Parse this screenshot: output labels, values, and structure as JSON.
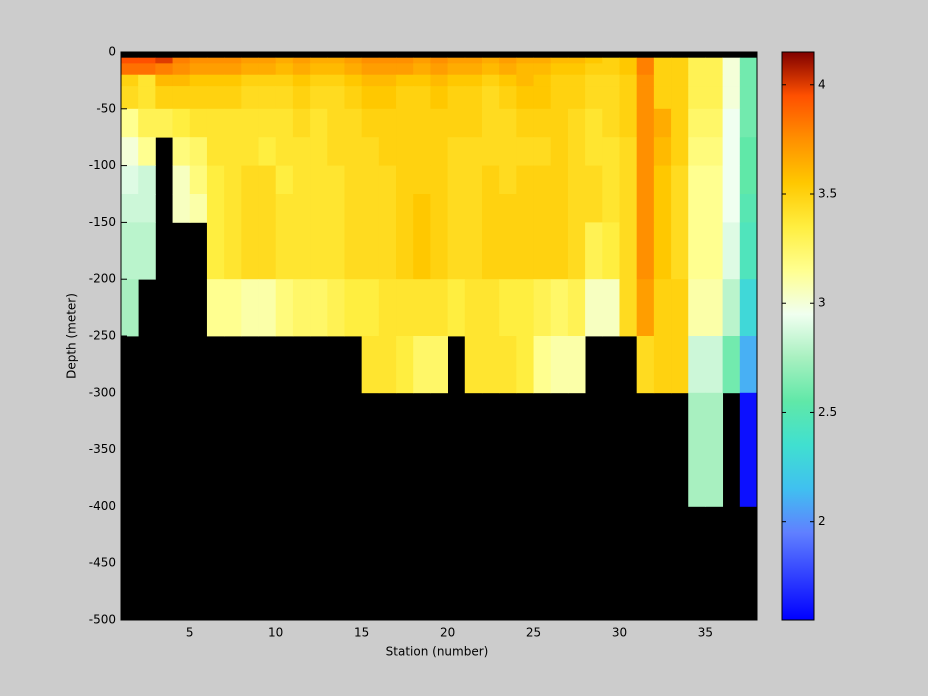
{
  "chart_data": {
    "type": "heatmap",
    "xlabel": "Station (number)",
    "ylabel": "Depth (meter)",
    "x": [
      1,
      2,
      3,
      4,
      5,
      6,
      7,
      8,
      9,
      10,
      11,
      12,
      13,
      14,
      15,
      16,
      17,
      18,
      19,
      20,
      21,
      22,
      23,
      24,
      25,
      26,
      27,
      28,
      29,
      30,
      31,
      32,
      33,
      34,
      35,
      36,
      37,
      38
    ],
    "y": [
      0,
      -5,
      -10,
      -20,
      -30,
      -50,
      -75,
      -100,
      -125,
      -150,
      -200,
      -250,
      -300,
      -400,
      -500
    ],
    "values": [
      [
        null,
        null,
        null,
        null,
        null,
        null,
        null,
        null,
        null,
        null,
        null,
        null,
        null,
        null,
        null,
        null,
        null,
        null,
        null,
        null,
        null,
        null,
        null,
        null,
        null,
        null,
        null,
        null,
        null,
        null,
        null,
        null,
        null,
        null,
        null,
        null,
        null
      ],
      [
        3.95,
        3.95,
        4.0,
        3.8,
        3.75,
        3.75,
        3.75,
        3.7,
        3.7,
        3.65,
        3.7,
        3.65,
        3.65,
        3.7,
        3.75,
        3.75,
        3.75,
        3.7,
        3.75,
        3.7,
        3.7,
        3.65,
        3.7,
        3.65,
        3.65,
        3.6,
        3.6,
        3.55,
        3.5,
        3.55,
        3.8,
        3.5,
        3.5,
        3.3,
        3.3,
        3.0,
        2.6
      ],
      [
        3.85,
        3.85,
        3.8,
        3.75,
        3.7,
        3.7,
        3.7,
        3.65,
        3.65,
        3.6,
        3.65,
        3.6,
        3.6,
        3.65,
        3.7,
        3.7,
        3.7,
        3.65,
        3.7,
        3.65,
        3.65,
        3.6,
        3.65,
        3.6,
        3.6,
        3.55,
        3.55,
        3.5,
        3.5,
        3.55,
        3.8,
        3.5,
        3.5,
        3.3,
        3.3,
        3.0,
        2.6
      ],
      [
        3.5,
        3.4,
        3.6,
        3.6,
        3.55,
        3.55,
        3.55,
        3.5,
        3.5,
        3.5,
        3.55,
        3.5,
        3.5,
        3.55,
        3.6,
        3.6,
        3.55,
        3.55,
        3.6,
        3.55,
        3.55,
        3.5,
        3.55,
        3.6,
        3.55,
        3.5,
        3.5,
        3.45,
        3.45,
        3.5,
        3.75,
        3.5,
        3.5,
        3.3,
        3.3,
        3.0,
        2.6
      ],
      [
        3.45,
        3.4,
        3.5,
        3.5,
        3.5,
        3.5,
        3.5,
        3.45,
        3.45,
        3.45,
        3.5,
        3.45,
        3.45,
        3.5,
        3.55,
        3.55,
        3.5,
        3.5,
        3.55,
        3.5,
        3.5,
        3.45,
        3.5,
        3.55,
        3.55,
        3.5,
        3.5,
        3.45,
        3.45,
        3.5,
        3.75,
        3.5,
        3.5,
        3.3,
        3.3,
        3.0,
        2.6
      ],
      [
        3.15,
        3.3,
        3.3,
        3.35,
        3.4,
        3.4,
        3.4,
        3.4,
        3.4,
        3.4,
        3.45,
        3.4,
        3.45,
        3.45,
        3.5,
        3.5,
        3.5,
        3.5,
        3.5,
        3.5,
        3.5,
        3.45,
        3.45,
        3.5,
        3.5,
        3.5,
        3.45,
        3.4,
        3.45,
        3.5,
        3.75,
        3.65,
        3.5,
        3.25,
        3.25,
        2.95,
        2.6
      ],
      [
        3.0,
        3.15,
        null,
        3.2,
        3.25,
        3.4,
        3.4,
        3.4,
        3.35,
        3.4,
        3.4,
        3.4,
        3.45,
        3.45,
        3.45,
        3.5,
        3.5,
        3.5,
        3.5,
        3.45,
        3.45,
        3.45,
        3.45,
        3.45,
        3.45,
        3.5,
        3.45,
        3.4,
        3.4,
        3.45,
        3.75,
        3.6,
        3.5,
        3.2,
        3.2,
        2.95,
        2.55
      ],
      [
        2.9,
        2.85,
        null,
        3.05,
        3.2,
        3.35,
        3.4,
        3.45,
        3.45,
        3.35,
        3.4,
        3.4,
        3.4,
        3.45,
        3.45,
        3.45,
        3.5,
        3.5,
        3.5,
        3.45,
        3.45,
        3.5,
        3.45,
        3.5,
        3.5,
        3.5,
        3.45,
        3.45,
        3.4,
        3.45,
        3.75,
        3.55,
        3.45,
        3.15,
        3.15,
        2.95,
        2.55
      ],
      [
        2.85,
        2.85,
        null,
        3.05,
        3.1,
        3.35,
        3.4,
        3.45,
        3.45,
        3.4,
        3.4,
        3.4,
        3.4,
        3.45,
        3.45,
        3.45,
        3.5,
        3.55,
        3.5,
        3.45,
        3.45,
        3.5,
        3.5,
        3.5,
        3.5,
        3.5,
        3.45,
        3.45,
        3.4,
        3.45,
        3.75,
        3.55,
        3.45,
        3.15,
        3.15,
        2.95,
        2.5
      ],
      [
        2.8,
        2.8,
        null,
        null,
        null,
        3.35,
        3.4,
        3.45,
        3.45,
        3.4,
        3.4,
        3.4,
        3.4,
        3.45,
        3.45,
        3.45,
        3.5,
        3.55,
        3.5,
        3.45,
        3.45,
        3.5,
        3.5,
        3.5,
        3.5,
        3.5,
        3.45,
        3.3,
        3.35,
        3.45,
        3.75,
        3.55,
        3.45,
        3.15,
        3.15,
        2.9,
        2.45
      ],
      [
        2.75,
        null,
        null,
        null,
        null,
        3.15,
        3.15,
        3.1,
        3.1,
        3.2,
        3.25,
        3.25,
        3.3,
        3.35,
        3.35,
        3.4,
        3.4,
        3.4,
        3.4,
        3.35,
        3.4,
        3.4,
        3.35,
        3.35,
        3.3,
        3.25,
        3.3,
        3.05,
        3.05,
        3.45,
        3.7,
        3.5,
        3.5,
        3.1,
        3.1,
        2.8,
        2.3
      ],
      [
        null,
        null,
        null,
        null,
        null,
        null,
        null,
        null,
        null,
        null,
        null,
        null,
        null,
        null,
        3.4,
        3.4,
        3.35,
        3.25,
        3.25,
        null,
        3.4,
        3.4,
        3.4,
        3.35,
        3.15,
        3.1,
        3.1,
        null,
        null,
        null,
        3.45,
        3.5,
        3.5,
        2.85,
        2.85,
        2.6,
        2.1
      ],
      [
        null,
        null,
        null,
        null,
        null,
        null,
        null,
        null,
        null,
        null,
        null,
        null,
        null,
        null,
        null,
        null,
        null,
        null,
        null,
        null,
        null,
        null,
        null,
        null,
        null,
        null,
        null,
        null,
        null,
        null,
        null,
        null,
        null,
        2.75,
        2.75,
        null,
        1.6
      ],
      [
        null,
        null,
        null,
        null,
        null,
        null,
        null,
        null,
        null,
        null,
        null,
        null,
        null,
        null,
        null,
        null,
        null,
        null,
        null,
        null,
        null,
        null,
        null,
        null,
        null,
        null,
        null,
        null,
        null,
        null,
        null,
        null,
        null,
        null,
        null,
        null,
        null
      ]
    ],
    "xlim": [
      1,
      38
    ],
    "xticks": [
      5,
      10,
      15,
      20,
      25,
      30,
      35
    ],
    "ylim": [
      -500,
      0
    ],
    "yticks": [
      0,
      -50,
      -100,
      -150,
      -200,
      -250,
      -300,
      -350,
      -400,
      -450,
      -500
    ],
    "clim": [
      1.55,
      4.15
    ],
    "cticks": [
      2,
      2.5,
      3,
      3.5,
      4
    ],
    "colormap": [
      "#0000ff",
      "#3040ff",
      "#6080ff",
      "#40c0f0",
      "#40e0d0",
      "#60e8a8",
      "#a8f0c0",
      "#f0fff0",
      "#ffff90",
      "#ffee40",
      "#ffc800",
      "#ff9000",
      "#ff5000",
      "#800000"
    ],
    "nan_color": "#000000"
  }
}
